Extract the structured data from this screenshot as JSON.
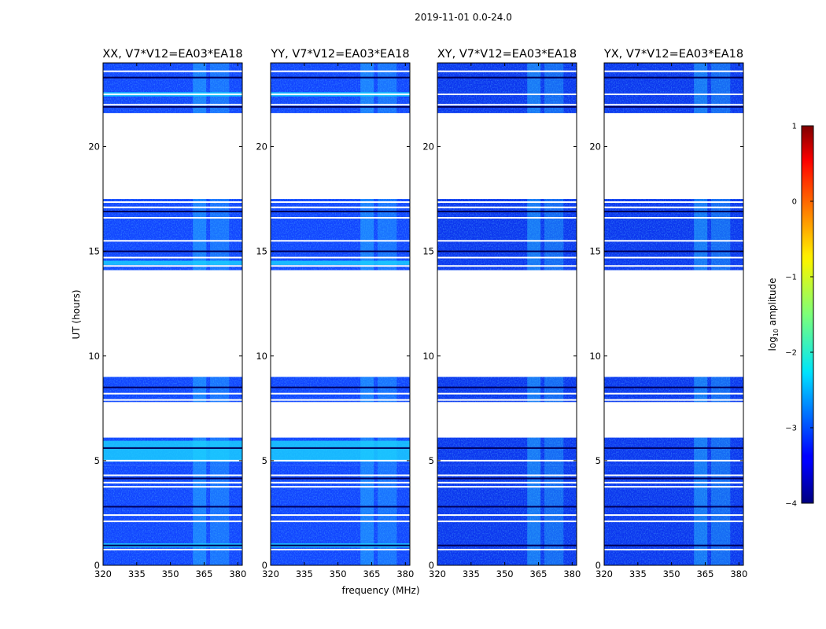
{
  "suptitle": "2019-11-01 0.0-24.0",
  "colorbar": {
    "label_prefix": "log",
    "label_sub": "10",
    "label_suffix": " amplitude",
    "range": [
      -4,
      1
    ],
    "ticks": [
      1,
      0,
      -1,
      -2,
      -3,
      -4
    ],
    "tick_labels": [
      "1",
      "0",
      "−1",
      "−2",
      "−3",
      "−4"
    ],
    "colormap": "jet"
  },
  "chart_data": {
    "type": "heatmap",
    "xlabel": "frequency (MHz)",
    "ylabel": "UT (hours)",
    "xlim": [
      320,
      382
    ],
    "ylim": [
      0,
      24
    ],
    "xticks": [
      320,
      335,
      350,
      365,
      380
    ],
    "xtick_labels": [
      "320",
      "335",
      "350",
      "365",
      "380"
    ],
    "yticks": [
      0,
      5,
      10,
      15,
      20
    ],
    "ytick_labels": [
      "0",
      "5",
      "10",
      "15",
      "20"
    ],
    "rfi_band_mhz": [
      360,
      377
    ],
    "data_blocks_ut": [
      [
        0,
        4.8
      ],
      [
        4.8,
        6.1
      ],
      [
        7.8,
        9.0
      ],
      [
        14.1,
        17.5
      ],
      [
        21.6,
        24.0
      ]
    ],
    "gaps_ut": [
      [
        6.15,
        7.75
      ],
      [
        9.0,
        14.05
      ],
      [
        17.5,
        21.55
      ]
    ],
    "flag_lines_ut": [
      0.75,
      0.95,
      2.1,
      2.4,
      2.8,
      3.75,
      3.95,
      4.15,
      4.3,
      5.0,
      5.6,
      7.9,
      8.2,
      8.5,
      14.3,
      14.7,
      15.0,
      15.5,
      16.6,
      16.9,
      17.1,
      17.35,
      21.9,
      22.0,
      22.5,
      23.3,
      23.6
    ],
    "panels": [
      {
        "title": "XX, V7*V12=EA03*EA18",
        "bright_blocks_ut": [
          [
            0.85,
            1.05
          ],
          [
            4.95,
            5.95
          ],
          [
            14.35,
            14.55
          ],
          [
            22.4,
            22.6
          ]
        ],
        "level": -3.2
      },
      {
        "title": "YY, V7*V12=EA03*EA18",
        "bright_blocks_ut": [
          [
            0.85,
            1.05
          ],
          [
            4.95,
            5.95
          ],
          [
            14.35,
            14.55
          ],
          [
            22.4,
            22.6
          ]
        ],
        "level": -3.2
      },
      {
        "title": "XY, V7*V12=EA03*EA18",
        "bright_blocks_ut": [],
        "level": -3.4
      },
      {
        "title": "YX, V7*V12=EA03*EA18",
        "bright_blocks_ut": [],
        "level": -3.4
      }
    ]
  }
}
